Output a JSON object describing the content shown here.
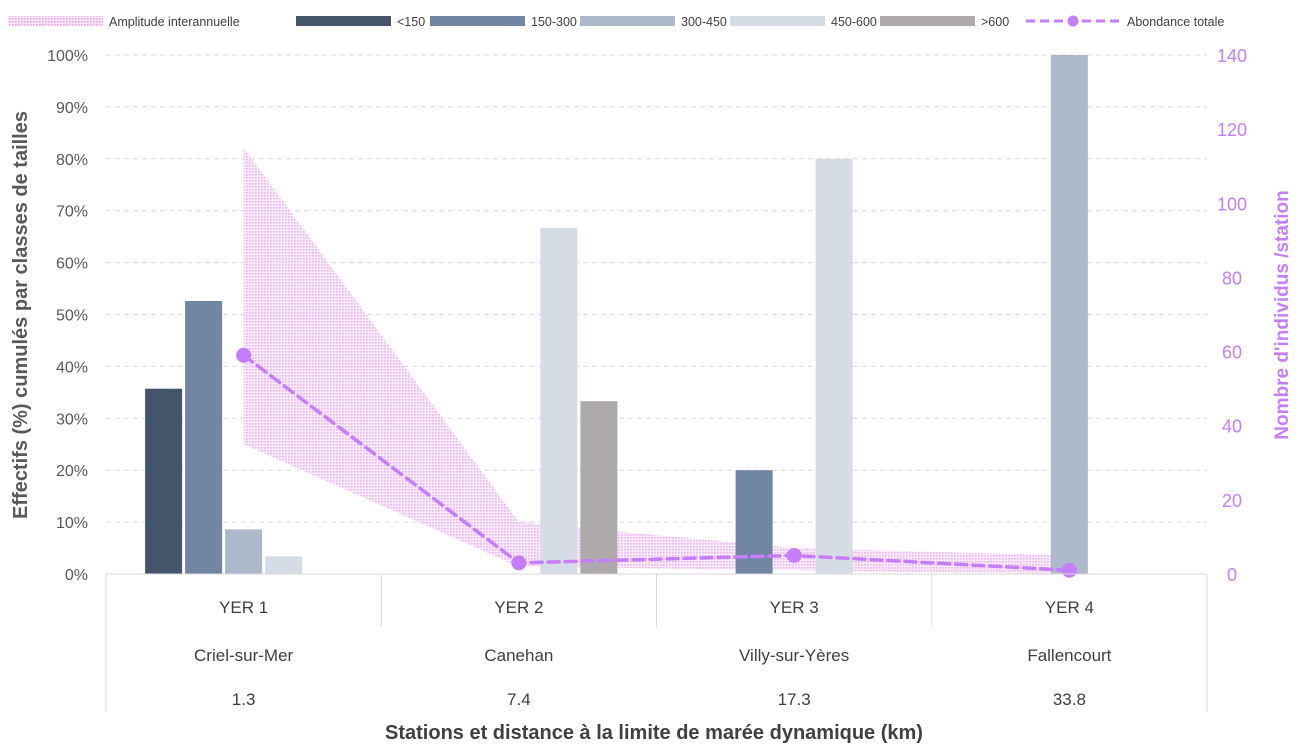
{
  "chart_data": {
    "type": "bar",
    "title": "",
    "legend_position": "top",
    "legend": [
      {
        "name": "Amplitude interannuelle",
        "kind": "area",
        "color": "#f3c8f7"
      },
      {
        "name": "<150",
        "kind": "bar",
        "color": "#44546a"
      },
      {
        "name": "150-300",
        "kind": "bar",
        "color": "#7186a3"
      },
      {
        "name": "300-450",
        "kind": "bar",
        "color": "#adb9ca"
      },
      {
        "name": "450-600",
        "kind": "bar",
        "color": "#d6dce5"
      },
      {
        "name": ">600",
        "kind": "bar",
        "color": "#aeaaaa"
      },
      {
        "name": "Abondance totale",
        "kind": "line",
        "color": "#c77dff"
      }
    ],
    "categories": [
      {
        "station": "YER 1",
        "place": "Criel-sur-Mer",
        "distance": "1.3"
      },
      {
        "station": "YER 2",
        "place": "Canehan",
        "distance": "7.4"
      },
      {
        "station": "YER 3",
        "place": "Villy-sur-Yères",
        "distance": "17.3"
      },
      {
        "station": "YER 4",
        "place": "Fallencourt",
        "distance": "33.8"
      }
    ],
    "bar_series": [
      {
        "name": "<150",
        "color": "#44546a",
        "values": [
          35.7,
          0,
          0,
          0
        ]
      },
      {
        "name": "150-300",
        "color": "#7186a3",
        "values": [
          52.6,
          0,
          20.0,
          0
        ]
      },
      {
        "name": "300-450",
        "color": "#adb9ca",
        "values": [
          8.6,
          0,
          0,
          100.0
        ]
      },
      {
        "name": "450-600",
        "color": "#d6dce5",
        "values": [
          3.4,
          66.7,
          80.0,
          0
        ]
      },
      {
        "name": ">600",
        "color": "#aeaaaa",
        "values": [
          0,
          33.3,
          0,
          0
        ]
      }
    ],
    "line_series": {
      "name": "Abondance totale",
      "color": "#c77dff",
      "values": [
        59,
        3,
        5,
        1
      ]
    },
    "range_series": {
      "name": "Amplitude interannuelle",
      "color": "#f3c8f7",
      "min": [
        35,
        2,
        1,
        0
      ],
      "max": [
        115,
        14,
        7,
        5
      ]
    },
    "y_left": {
      "label": "Effectifs (%) cumulés par classes de tailles",
      "min": 0,
      "max": 100,
      "step": 10,
      "tick_suffix": "%"
    },
    "y_right": {
      "label": "Nombre d'individus /station",
      "min": 0,
      "max": 140,
      "step": 20
    },
    "xlabel": "Stations et distance à la limite de marée dynamique (km)",
    "grid": true
  }
}
